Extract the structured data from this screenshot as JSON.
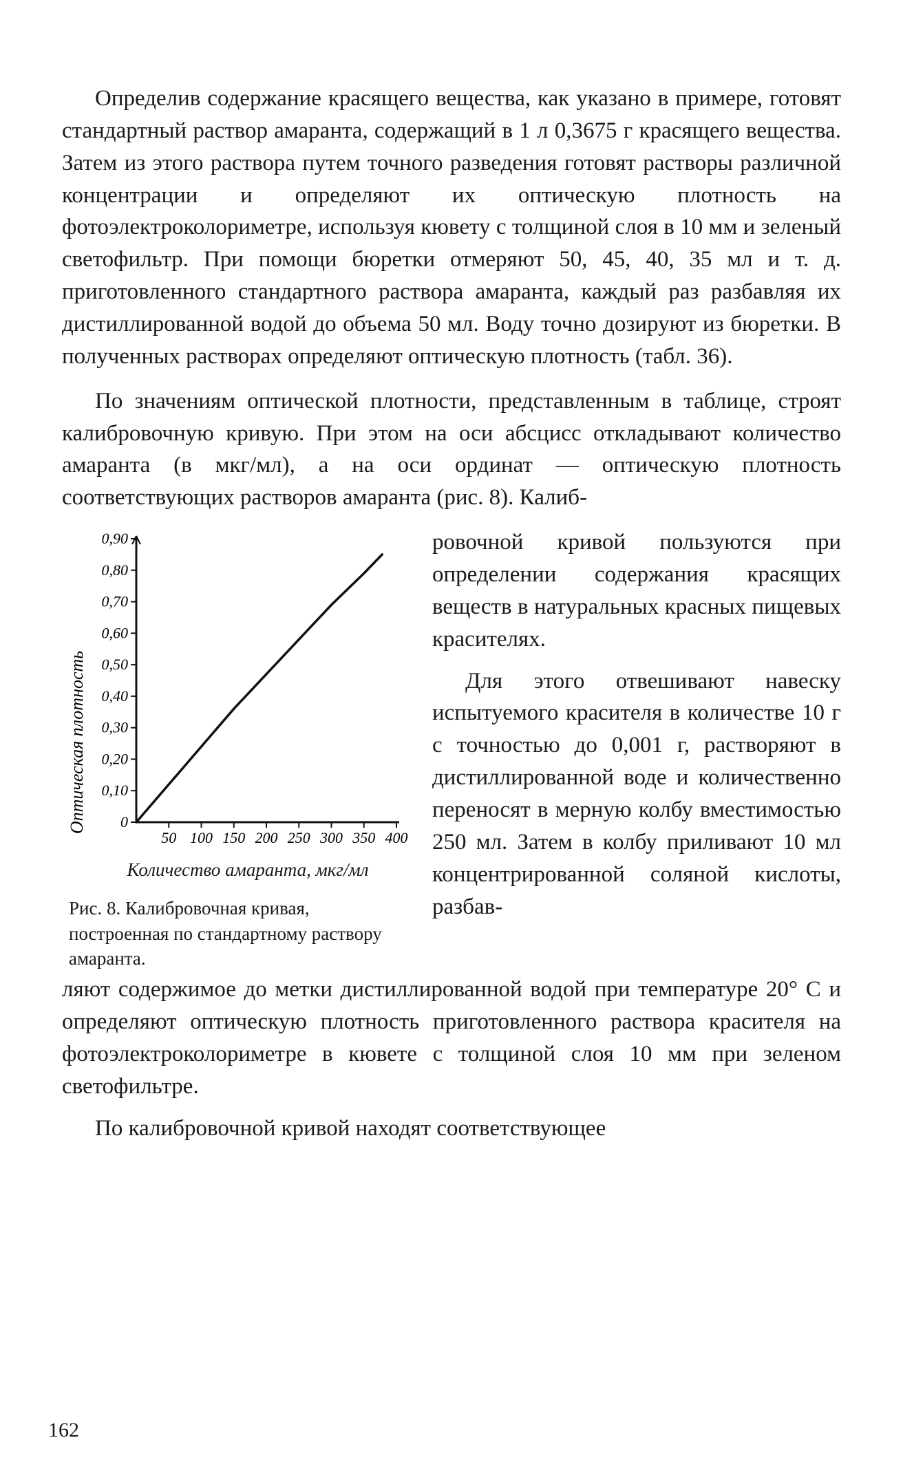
{
  "paragraphs": {
    "p1": "Определив содержание красящего вещества, как указано в примере, готовят стандартный раствор амаранта, содержащий в 1 л 0,3675 г красящего вещества. Затем из этого раствора путем точного разведения готовят растворы различной концентрации и определяют их оптическую плотность на фотоэлектроколориметре, используя кювету с толщиной слоя в 10 мм и зеленый светофильтр. При помощи бюретки отмеряют 50, 45, 40, 35 мл и т. д. приготовленного стандартного раствора амаранта, каждый раз разбавляя их дистиллированной водой до объема 50 мл. Воду точно дозируют из бюретки. В полученных растворах определяют оптическую плотность (табл. 36).",
    "p2": "По значениям оптической плотности, представленным в таблице, строят калибровочную кривую. При этом на оси абсцисс откладывают количество амаранта (в мкг/мл), а на оси ординат — оптическую плотность соответствующих растворов амаранта (рис. 8). Калиб-",
    "right1": "ровочной кривой пользуются при определении содержания красящих веществ в натуральных красных пищевых красителях.",
    "right2": "Для этого отвешивают навеску испытуемого красителя в количестве 10 г с точностью до 0,001 г, растворяют в дистиллированной воде и количественно переносят в мерную колбу вместимостью 250 мл. Затем в колбу приливают 10 мл концентрированной соляной кислоты, разбав-",
    "p3": "ляют содержимое до метки дистиллированной водой при температуре 20° С и определяют оптическую плотность приготовленного раствора красителя на фотоэлектроколориметре в кювете с толщиной слоя 10 мм при зеленом светофильтре.",
    "p4": "По калибровочной кривой находят соответствующее"
  },
  "figure": {
    "caption": "Рис. 8. Калибровочная кривая, построенная по стандартному раствору амаранта.",
    "x_axis_label": "Количество   амаранта, мкг/мл",
    "y_axis_label": "Оптическая плотность",
    "chart": {
      "type": "line",
      "xlim": [
        0,
        400
      ],
      "ylim": [
        0,
        0.9
      ],
      "xticks": [
        50,
        100,
        150,
        200,
        250,
        300,
        350,
        400
      ],
      "yticks": [
        0,
        0.1,
        0.2,
        0.3,
        0.4,
        0.5,
        0.6,
        0.7,
        0.8,
        0.9
      ],
      "ytick_labels": [
        "0",
        "0,10",
        "0,20",
        "0,30",
        "0,40",
        "0,50",
        "0,60",
        "0,70",
        "0,80",
        "0,90"
      ],
      "xtick_labels": [
        "50",
        "100",
        "150",
        "200",
        "250",
        "300",
        "350",
        "400"
      ],
      "line_points_x": [
        0,
        50,
        100,
        150,
        200,
        250,
        300,
        350,
        378
      ],
      "line_points_y": [
        0,
        0.12,
        0.24,
        0.36,
        0.47,
        0.58,
        0.69,
        0.79,
        0.85
      ],
      "line_color": "#111111",
      "line_width": 3.5,
      "axis_color": "#111111",
      "axis_width": 3,
      "tick_length": 8,
      "background_color": "#ffffff",
      "tick_font_size": 22,
      "ylabel_font_size": 26
    }
  },
  "page_number": "162"
}
